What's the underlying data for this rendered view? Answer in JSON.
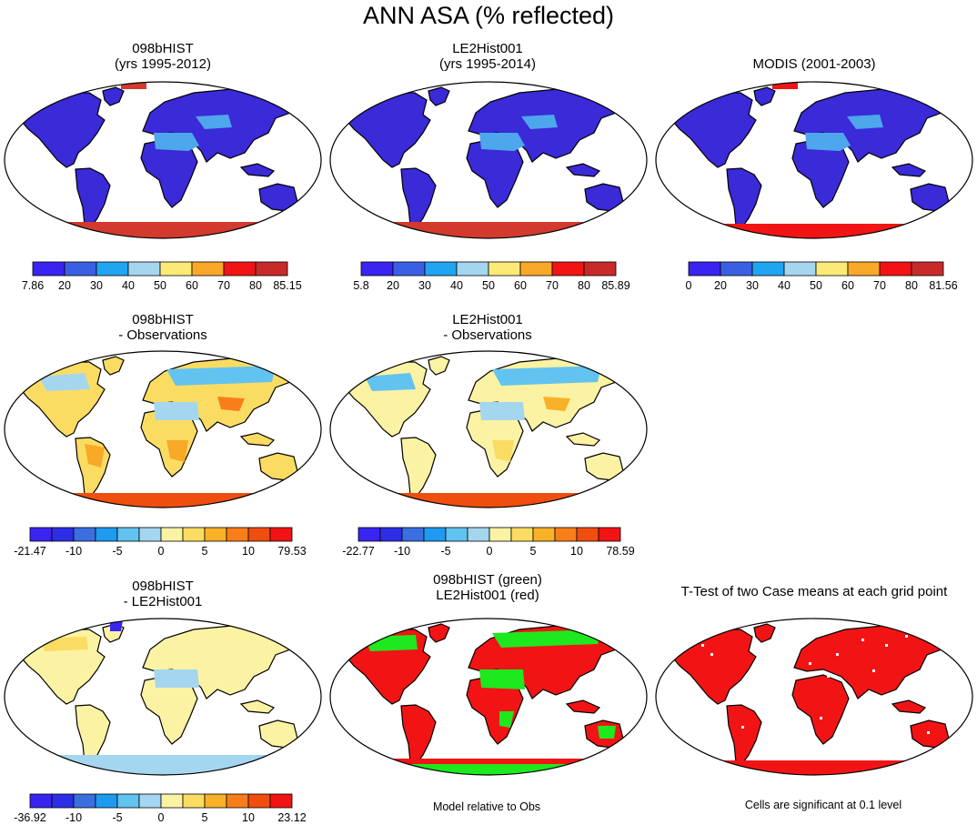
{
  "figure": {
    "title": "ANN ASA (% reflected)"
  },
  "palettes": {
    "abs": [
      "#3a24f2",
      "#3b5fe3",
      "#20a5f2",
      "#a5d6ef",
      "#fbea78",
      "#f9a827",
      "#f21414",
      "#c82a2a"
    ],
    "diff": [
      "#3a24f2",
      "#2e2ee6",
      "#3b6fe0",
      "#1e9af0",
      "#62c3f0",
      "#a5d6ef",
      "#fbf2a3",
      "#fbdc62",
      "#f9b128",
      "#f97e1a",
      "#f04e0e",
      "#f21414",
      "#c82a2a"
    ],
    "land_default": "#3a2ad8",
    "ice_default": "#d23a2e"
  },
  "panels": {
    "p1": {
      "title1": "098bHIST",
      "title2": "(yrs 1995-2012)",
      "ticks": [
        "7.86",
        "20",
        "30",
        "40",
        "50",
        "60",
        "70",
        "80",
        "85.15"
      ]
    },
    "p2": {
      "title1": "LE2Hist001",
      "title2": "(yrs 1995-2014)",
      "ticks": [
        "5.8",
        "20",
        "30",
        "40",
        "50",
        "60",
        "70",
        "80",
        "85.89"
      ]
    },
    "p3": {
      "title1": "MODIS (2001-2003)",
      "ticks": [
        "0",
        "20",
        "30",
        "40",
        "50",
        "60",
        "70",
        "80",
        "81.56"
      ]
    },
    "p4": {
      "title1": "098bHIST",
      "title2": "- Observations",
      "ticks": [
        "-21.47",
        "-10",
        "-5",
        "0",
        "5",
        "10",
        "79.53"
      ]
    },
    "p5": {
      "title1": "LE2Hist001",
      "title2": "- Observations",
      "ticks": [
        "-22.77",
        "-10",
        "-5",
        "0",
        "5",
        "10",
        "78.59"
      ]
    },
    "p7": {
      "title1": "098bHIST",
      "title2": "- LE2Hist001",
      "ticks": [
        "-36.92",
        "-10",
        "-5",
        "0",
        "5",
        "10",
        "23.12"
      ]
    },
    "p8": {
      "title1": "098bHIST (green)",
      "title2": "LE2Hist001 (red)"
    },
    "p9": {
      "title1": "T-Test of two Case means at each grid point"
    }
  },
  "notes": {
    "model_relative": "Model relative to Obs",
    "cells_significant": "Cells are significant at 0.1 level"
  }
}
